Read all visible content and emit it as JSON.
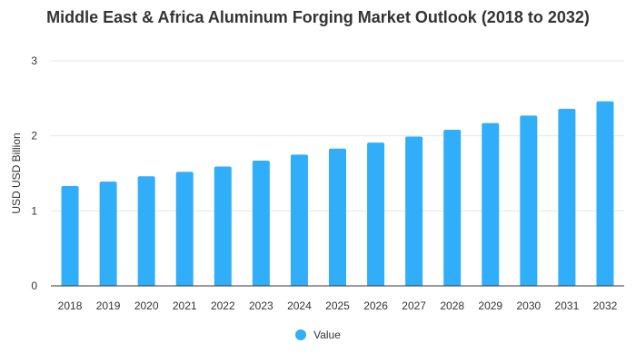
{
  "colors": {
    "bar": "#30aef9",
    "grid": "#e6e6e6",
    "axis_line": "#333333",
    "text": "#333333"
  },
  "chart_data": {
    "type": "bar",
    "title": "Middle East & Africa Aluminum Forging Market Outlook (2018 to 2032)",
    "xlabel": "",
    "ylabel": "USD USD Billion",
    "ylim": [
      0,
      3
    ],
    "yticks": [
      0,
      1,
      2,
      3
    ],
    "categories": [
      "2018",
      "2019",
      "2020",
      "2021",
      "2022",
      "2023",
      "2024",
      "2025",
      "2026",
      "2027",
      "2028",
      "2029",
      "2030",
      "2031",
      "2032"
    ],
    "series": [
      {
        "name": "Value",
        "values": [
          1.33,
          1.39,
          1.46,
          1.52,
          1.59,
          1.67,
          1.75,
          1.83,
          1.91,
          1.99,
          2.08,
          2.17,
          2.27,
          2.36,
          2.46
        ]
      }
    ],
    "grid": true,
    "legend_position": "bottom"
  }
}
